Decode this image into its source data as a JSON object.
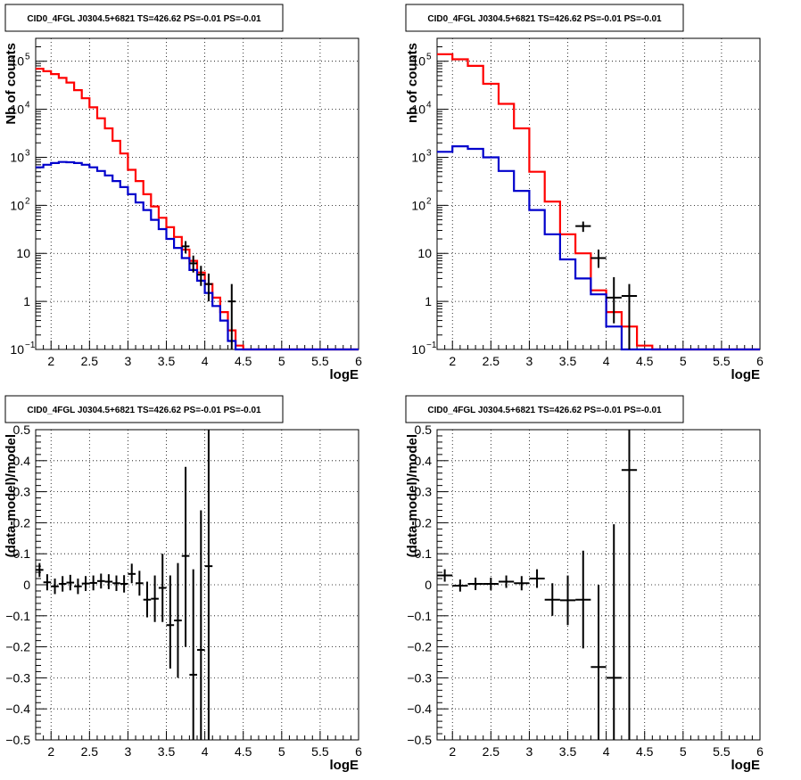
{
  "title_text": "CID0_4FGL J0304.5+6821 TS=426.62 PS=-0.01 PS=-0.01",
  "colors": {
    "model_total": "#ff0000",
    "model_source": "#0000cc",
    "data": "#000000",
    "grid": "#000000"
  },
  "chart_data": [
    {
      "type": "line",
      "title": "CID0_4FGL J0304.5+6821 TS=426.62 PS=-0.01 PS=-0.01",
      "xlabel": "logE",
      "ylabel": "Nb of counts",
      "xlim": [
        1.8,
        6.0
      ],
      "ylim": [
        0.1,
        300000
      ],
      "log_y": true,
      "grid": true,
      "x_ticks": [
        "2",
        "2.5",
        "3",
        "3.5",
        "4",
        "4.5",
        "5",
        "5.5",
        "6"
      ],
      "y_ticks": [
        {
          "value": 0.1,
          "base": "10",
          "exp": "−1"
        },
        {
          "value": 1,
          "label": "1"
        },
        {
          "value": 10,
          "label": "10"
        },
        {
          "value": 100,
          "base": "10",
          "exp": "2"
        },
        {
          "value": 1000,
          "base": "10",
          "exp": "3"
        },
        {
          "value": 10000,
          "base": "10",
          "exp": "4"
        },
        {
          "value": 100000,
          "base": "10",
          "exp": "5"
        }
      ],
      "series": [
        {
          "role": "model_total",
          "bin_edges": [
            1.8,
            1.9,
            2.0,
            2.1,
            2.2,
            2.3,
            2.4,
            2.5,
            2.6,
            2.7,
            2.8,
            2.9,
            3.0,
            3.1,
            3.2,
            3.3,
            3.4,
            3.5,
            3.6,
            3.7,
            3.8,
            3.9,
            4.0,
            4.1,
            4.2,
            4.3,
            4.4,
            4.5,
            4.6,
            4.7,
            4.8,
            4.9,
            5.0,
            5.1,
            5.2,
            5.3,
            5.4,
            5.5,
            5.6,
            5.7,
            5.8,
            5.9,
            6.0
          ],
          "values": [
            70000,
            62000,
            54000,
            45000,
            36000,
            25000,
            17000,
            11000,
            6500,
            4000,
            2200,
            1200,
            550,
            320,
            170,
            95,
            55,
            35,
            22,
            12,
            7,
            4,
            2.3,
            1.2,
            0.6,
            0.25,
            0.12,
            0.1,
            0.1,
            0.1,
            0.1,
            0.1,
            0.1,
            0.1,
            0.1,
            0.1,
            0.1,
            0.1,
            0.1,
            0.1,
            0.1,
            0.1
          ]
        },
        {
          "role": "model_source",
          "bin_edges": [
            1.8,
            1.9,
            2.0,
            2.1,
            2.2,
            2.3,
            2.4,
            2.5,
            2.6,
            2.7,
            2.8,
            2.9,
            3.0,
            3.1,
            3.2,
            3.3,
            3.4,
            3.5,
            3.6,
            3.7,
            3.8,
            3.9,
            4.0,
            4.1,
            4.2,
            4.3,
            4.4,
            4.5,
            4.6,
            4.7,
            4.8,
            4.9,
            5.0,
            5.1,
            5.2,
            5.3,
            5.4,
            5.5,
            5.6,
            5.7,
            5.8,
            5.9,
            6.0
          ],
          "values": [
            620,
            700,
            760,
            800,
            790,
            760,
            700,
            620,
            520,
            420,
            320,
            240,
            170,
            115,
            80,
            50,
            32,
            20,
            13,
            8,
            4.5,
            2.7,
            1.5,
            0.8,
            0.4,
            0.15,
            0.1,
            0.1,
            0.1,
            0.1,
            0.1,
            0.1,
            0.1,
            0.1,
            0.1,
            0.1,
            0.1,
            0.1,
            0.1,
            0.1,
            0.1,
            0.1
          ]
        }
      ],
      "data_points": [
        {
          "x": 3.75,
          "y": 14,
          "xerr": 0.05,
          "ylo": 10,
          "yhi": 18
        },
        {
          "x": 3.85,
          "y": 6.2,
          "xerr": 0.05,
          "ylo": 4.0,
          "yhi": 9
        },
        {
          "x": 3.95,
          "y": 3.6,
          "xerr": 0.05,
          "ylo": 2.1,
          "yhi": 5.5
        },
        {
          "x": 4.05,
          "y": 2.3,
          "xerr": 0.05,
          "ylo": 1.0,
          "yhi": 3.8
        },
        {
          "x": 4.35,
          "y": 1,
          "xerr": 0.05,
          "ylo": 0.1,
          "yhi": 2.3
        }
      ]
    },
    {
      "type": "line",
      "title": "CID0_4FGL J0304.5+6821 TS=426.62 PS=-0.01 PS=-0.01",
      "xlabel": "logE",
      "ylabel": "nb of counts",
      "xlim": [
        1.8,
        6.0
      ],
      "ylim": [
        0.1,
        300000
      ],
      "log_y": true,
      "grid": true,
      "x_ticks": [
        "2",
        "2.5",
        "3",
        "3.5",
        "4",
        "4.5",
        "5",
        "5.5",
        "6"
      ],
      "y_ticks": [
        {
          "value": 0.1,
          "base": "10",
          "exp": "−1"
        },
        {
          "value": 1,
          "label": "1"
        },
        {
          "value": 10,
          "label": "10"
        },
        {
          "value": 100,
          "base": "10",
          "exp": "2"
        },
        {
          "value": 1000,
          "base": "10",
          "exp": "3"
        },
        {
          "value": 10000,
          "base": "10",
          "exp": "4"
        },
        {
          "value": 100000,
          "base": "10",
          "exp": "5"
        }
      ],
      "series": [
        {
          "role": "model_total",
          "bin_edges": [
            1.8,
            2.0,
            2.2,
            2.4,
            2.6,
            2.8,
            3.0,
            3.2,
            3.4,
            3.6,
            3.8,
            4.0,
            4.2,
            4.4,
            4.6,
            4.8,
            5.0,
            5.2,
            5.4,
            5.6,
            5.8,
            6.0
          ],
          "values": [
            140000,
            110000,
            80000,
            34000,
            13000,
            4000,
            500,
            120,
            25,
            10,
            1.7,
            0.6,
            0.3,
            0.12,
            0.1,
            0.1,
            0.1,
            0.1,
            0.1,
            0.1,
            0.1
          ]
        },
        {
          "role": "model_source",
          "bin_edges": [
            1.8,
            2.0,
            2.2,
            2.4,
            2.6,
            2.8,
            3.0,
            3.2,
            3.4,
            3.6,
            3.8,
            4.0,
            4.2,
            4.4,
            4.6,
            4.8,
            5.0,
            5.2,
            5.4,
            5.6,
            5.8,
            6.0
          ],
          "values": [
            1300,
            1700,
            1500,
            1000,
            520,
            200,
            80,
            25,
            7.5,
            3,
            1.4,
            0.3,
            0.1,
            0.1,
            0.1,
            0.1,
            0.1,
            0.1,
            0.1,
            0.1,
            0.1
          ]
        }
      ],
      "data_points": [
        {
          "x": 3.7,
          "y": 37,
          "xerr": 0.1,
          "ylo": 28,
          "yhi": 46
        },
        {
          "x": 3.9,
          "y": 8,
          "xerr": 0.1,
          "ylo": 5,
          "yhi": 12
        },
        {
          "x": 4.1,
          "y": 1.2,
          "xerr": 0.1,
          "ylo": 0.35,
          "yhi": 3.2
        },
        {
          "x": 4.3,
          "y": 1.3,
          "xerr": 0.1,
          "ylo": 0.1,
          "yhi": 2.3
        }
      ]
    },
    {
      "type": "scatter",
      "title": "CID0_4FGL J0304.5+6821 TS=426.62 PS=-0.01 PS=-0.01",
      "xlabel": "logE",
      "ylabel": "(data-model)/model",
      "xlim": [
        1.8,
        6.0
      ],
      "ylim": [
        -0.5,
        0.5
      ],
      "grid": true,
      "x_ticks": [
        "2",
        "2.5",
        "3",
        "3.5",
        "4",
        "4.5",
        "5",
        "5.5",
        "6"
      ],
      "y_ticks": [
        "−0.5",
        "−0.4",
        "−0.3",
        "−0.2",
        "−0.1",
        "0",
        "0.1",
        "0.2",
        "0.3",
        "0.4",
        "0.5"
      ],
      "data_points": [
        {
          "x": 1.85,
          "y": 0.048,
          "xerr": 0.05,
          "ylo": 0.025,
          "yhi": 0.07
        },
        {
          "x": 1.95,
          "y": 0.008,
          "xerr": 0.05,
          "ylo": -0.018,
          "yhi": 0.034
        },
        {
          "x": 2.05,
          "y": -0.005,
          "xerr": 0.05,
          "ylo": -0.03,
          "yhi": 0.02
        },
        {
          "x": 2.15,
          "y": 0.003,
          "xerr": 0.05,
          "ylo": -0.022,
          "yhi": 0.028
        },
        {
          "x": 2.25,
          "y": 0.007,
          "xerr": 0.05,
          "ylo": -0.018,
          "yhi": 0.032
        },
        {
          "x": 2.35,
          "y": -0.005,
          "xerr": 0.05,
          "ylo": -0.03,
          "yhi": 0.02
        },
        {
          "x": 2.45,
          "y": 0.004,
          "xerr": 0.05,
          "ylo": -0.02,
          "yhi": 0.028
        },
        {
          "x": 2.55,
          "y": 0.006,
          "xerr": 0.05,
          "ylo": -0.018,
          "yhi": 0.03
        },
        {
          "x": 2.65,
          "y": 0.012,
          "xerr": 0.05,
          "ylo": -0.012,
          "yhi": 0.036
        },
        {
          "x": 2.75,
          "y": 0.01,
          "xerr": 0.05,
          "ylo": -0.014,
          "yhi": 0.034
        },
        {
          "x": 2.85,
          "y": 0.005,
          "xerr": 0.05,
          "ylo": -0.02,
          "yhi": 0.03
        },
        {
          "x": 2.95,
          "y": 0.003,
          "xerr": 0.05,
          "ylo": -0.025,
          "yhi": 0.031
        },
        {
          "x": 3.05,
          "y": 0.035,
          "xerr": 0.05,
          "ylo": 0.005,
          "yhi": 0.068
        },
        {
          "x": 3.15,
          "y": 0.005,
          "xerr": 0.05,
          "ylo": -0.035,
          "yhi": 0.045
        },
        {
          "x": 3.25,
          "y": -0.048,
          "xerr": 0.05,
          "ylo": -0.105,
          "yhi": 0.01
        },
        {
          "x": 3.35,
          "y": -0.045,
          "xerr": 0.05,
          "ylo": -0.12,
          "yhi": 0.03
        },
        {
          "x": 3.45,
          "y": -0.01,
          "xerr": 0.05,
          "ylo": -0.12,
          "yhi": 0.1
        },
        {
          "x": 3.55,
          "y": -0.13,
          "xerr": 0.05,
          "ylo": -0.27,
          "yhi": 0.03
        },
        {
          "x": 3.65,
          "y": -0.115,
          "xerr": 0.05,
          "ylo": -0.3,
          "yhi": 0.07
        },
        {
          "x": 3.75,
          "y": 0.093,
          "xerr": 0.05,
          "ylo": -0.2,
          "yhi": 0.38
        },
        {
          "x": 3.85,
          "y": -0.29,
          "xerr": 0.05,
          "ylo": -0.5,
          "yhi": 0.05
        },
        {
          "x": 3.95,
          "y": -0.21,
          "xerr": 0.05,
          "ylo": -0.5,
          "yhi": 0.24
        },
        {
          "x": 4.05,
          "y": 0.06,
          "xerr": 0.05,
          "ylo": -0.5,
          "yhi": 0.5
        }
      ]
    },
    {
      "type": "scatter",
      "title": "CID0_4FGL J0304.5+6821 TS=426.62 PS=-0.01 PS=-0.01",
      "xlabel": "logE",
      "ylabel": "(data-model)/model",
      "xlim": [
        1.8,
        6.0
      ],
      "ylim": [
        -0.5,
        0.5
      ],
      "grid": true,
      "x_ticks": [
        "2",
        "2.5",
        "3",
        "3.5",
        "4",
        "4.5",
        "5",
        "5.5",
        "6"
      ],
      "y_ticks": [
        "−0.5",
        "−0.4",
        "−0.3",
        "−0.2",
        "−0.1",
        "0",
        "0.1",
        "0.2",
        "0.3",
        "0.4",
        "0.5"
      ],
      "data_points": [
        {
          "x": 1.9,
          "y": 0.03,
          "xerr": 0.1,
          "ylo": 0.01,
          "yhi": 0.05
        },
        {
          "x": 2.1,
          "y": -0.003,
          "xerr": 0.1,
          "ylo": -0.022,
          "yhi": 0.017
        },
        {
          "x": 2.3,
          "y": 0.003,
          "xerr": 0.1,
          "ylo": -0.017,
          "yhi": 0.023
        },
        {
          "x": 2.5,
          "y": 0.003,
          "xerr": 0.1,
          "ylo": -0.017,
          "yhi": 0.023
        },
        {
          "x": 2.7,
          "y": 0.01,
          "xerr": 0.1,
          "ylo": -0.01,
          "yhi": 0.03
        },
        {
          "x": 2.9,
          "y": 0.005,
          "xerr": 0.1,
          "ylo": -0.018,
          "yhi": 0.028
        },
        {
          "x": 3.1,
          "y": 0.02,
          "xerr": 0.1,
          "ylo": -0.01,
          "yhi": 0.05
        },
        {
          "x": 3.3,
          "y": -0.048,
          "xerr": 0.1,
          "ylo": -0.1,
          "yhi": 0.005
        },
        {
          "x": 3.5,
          "y": -0.05,
          "xerr": 0.1,
          "ylo": -0.13,
          "yhi": 0.03
        },
        {
          "x": 3.7,
          "y": -0.048,
          "xerr": 0.1,
          "ylo": -0.205,
          "yhi": 0.11
        },
        {
          "x": 3.9,
          "y": -0.265,
          "xerr": 0.1,
          "ylo": -0.5,
          "yhi": 0.0
        },
        {
          "x": 4.1,
          "y": -0.3,
          "xerr": 0.1,
          "ylo": -0.5,
          "yhi": 0.195
        },
        {
          "x": 4.3,
          "y": 0.37,
          "xerr": 0.1,
          "ylo": -0.5,
          "yhi": 0.5
        }
      ]
    }
  ]
}
